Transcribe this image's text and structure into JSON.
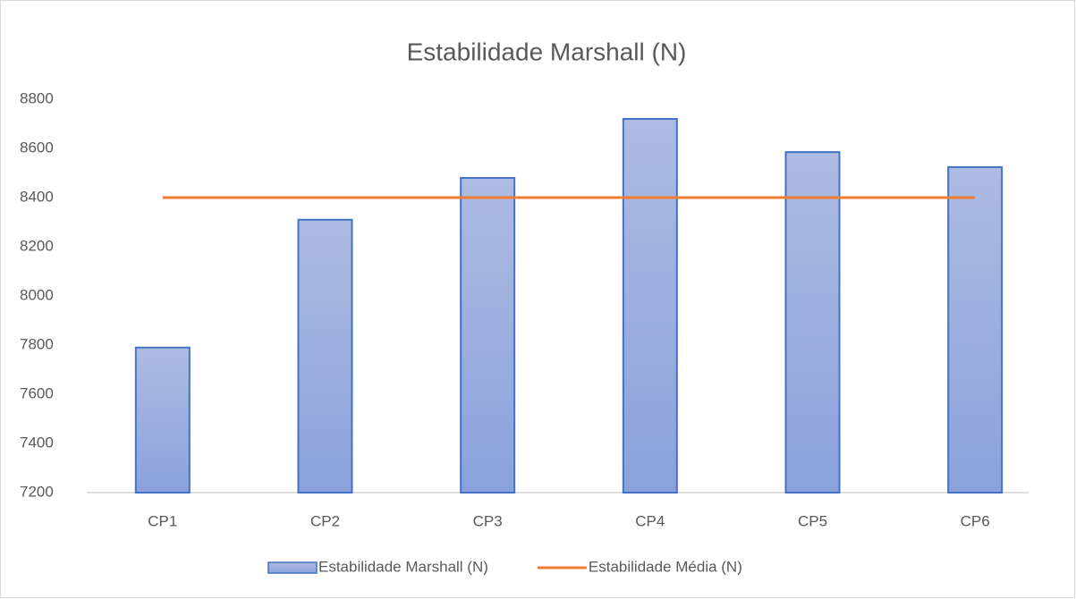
{
  "chart_data": {
    "type": "bar",
    "title": "Estabilidade Marshall (N)",
    "categories": [
      "CP1",
      "CP2",
      "CP3",
      "CP4",
      "CP5",
      "CP6"
    ],
    "series": [
      {
        "name": "Estabilidade Marshall (N)",
        "type": "bar",
        "color": "#4472c4",
        "values": [
          7790,
          8310,
          8480,
          8720,
          8585,
          8524
        ]
      },
      {
        "name": "Estabilidade Média (N)",
        "type": "line",
        "color": "#ed7d31",
        "values": [
          8400,
          8400,
          8400,
          8400,
          8400,
          8400
        ]
      }
    ],
    "ylim": [
      7200,
      8800
    ],
    "yticks": [
      7200,
      7400,
      7600,
      7800,
      8000,
      8200,
      8400,
      8600,
      8800
    ],
    "grid": false
  }
}
